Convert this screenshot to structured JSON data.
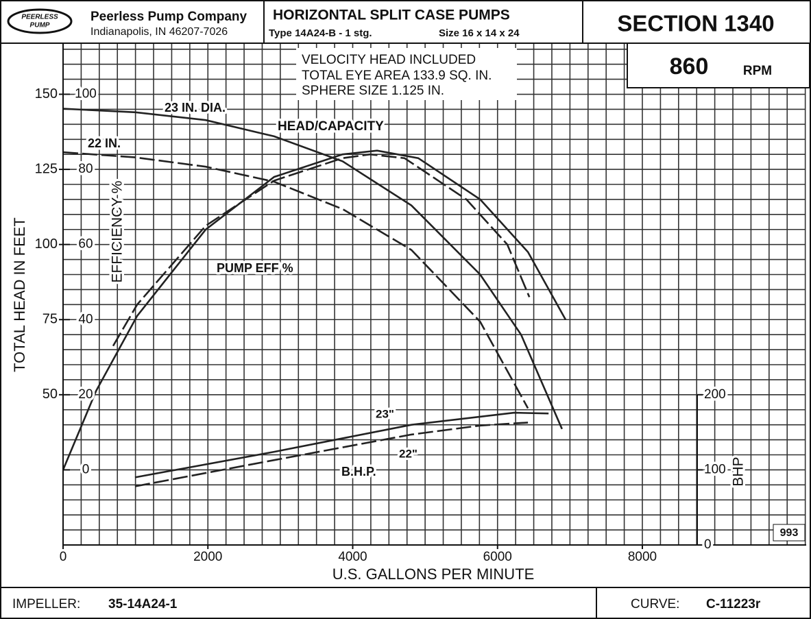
{
  "header": {
    "logo": [
      "PEERLESS",
      "PUMP"
    ],
    "company": "Peerless Pump Company",
    "address": "Indianapolis, IN 46207-7026",
    "title": "HORIZONTAL SPLIT CASE PUMPS",
    "type": "Type  14A24-B - 1 stg.",
    "size": "Size  16 x 14 x 24",
    "section": "SECTION 1340",
    "speed": 860,
    "speed_unit": "RPM"
  },
  "footer": {
    "impeller_label": "IMPELLER:",
    "impeller": "35-14A24-1",
    "curve_label": "CURVE:",
    "curve": "C-11223r"
  },
  "chart_data": {
    "type": "line",
    "notes": [
      "VELOCITY HEAD INCLUDED",
      "TOTAL EYE AREA 133.9 SQ. IN.",
      "SPHERE SIZE 1.125 IN."
    ],
    "annotations": [
      "23 IN. DIA.",
      "22 IN.",
      "HEAD/CAPACITY",
      "PUMP EFF %",
      "B.H.P.",
      "23\"",
      "22\"",
      "993"
    ],
    "xlabel": "U.S. GALLONS PER MINUTE",
    "ylabel": "TOTAL HEAD IN FEET",
    "y2label": "EFFICIENCY %",
    "y3label": "BHP",
    "xlim": [
      0,
      10250
    ],
    "xticks": [
      0,
      2000,
      4000,
      6000,
      8000
    ],
    "ylim": [
      0,
      167
    ],
    "yticks": [
      50,
      75,
      100,
      125,
      150
    ],
    "y2lim": [
      -20,
      113.6
    ],
    "y2ticks": [
      0,
      20,
      40,
      60,
      80,
      100
    ],
    "y3lim": [
      0,
      668
    ],
    "y3ticks": [
      0,
      100,
      200
    ],
    "grid": true,
    "minor_grid": {
      "x": 250,
      "y": 5
    },
    "series": [
      {
        "name": "23 IN. DIA. head",
        "axis": "y",
        "dash": false,
        "color": "#222",
        "x": [
          0,
          1000,
          1970,
          2915,
          3860,
          4810,
          5760,
          6325,
          6890
        ],
        "values": [
          145.2,
          144,
          141.4,
          136,
          127.7,
          113,
          90,
          70,
          38.6
        ]
      },
      {
        "name": "22 IN. head",
        "axis": "y",
        "dash": true,
        "color": "#222",
        "x": [
          0,
          1000,
          1970,
          2915,
          3860,
          4810,
          5760,
          6420
        ],
        "values": [
          130.7,
          129,
          125.9,
          120.9,
          111.8,
          98.2,
          74.3,
          45.5
        ]
      },
      {
        "name": "23 IN. efficiency",
        "axis": "y2",
        "dash": false,
        "color": "#222",
        "x": [
          0,
          455,
          1023,
          1970,
          2915,
          3860,
          4337,
          4905,
          5760,
          6420,
          6940
        ],
        "values": [
          0,
          21,
          41,
          64,
          78,
          84,
          85,
          83,
          72,
          58,
          40
        ]
      },
      {
        "name": "22 IN. efficiency",
        "axis": "y2",
        "dash": true,
        "color": "#222",
        "x": [
          691,
          1023,
          1970,
          2915,
          3860,
          4240,
          4715,
          5570,
          6135,
          6440
        ],
        "values": [
          33,
          44,
          65,
          77,
          83,
          84,
          83,
          72,
          60,
          46
        ]
      },
      {
        "name": "23 IN. BHP",
        "axis": "y3",
        "dash": false,
        "color": "#222",
        "x": [
          994,
          2915,
          4810,
          6230,
          6705
        ],
        "values": [
          90,
          124,
          160,
          176,
          175
        ]
      },
      {
        "name": "22 IN. BHP",
        "axis": "y3",
        "dash": true,
        "color": "#222",
        "x": [
          994,
          2915,
          4810,
          5760,
          6420
        ],
        "values": [
          78,
          113,
          147,
          159,
          163
        ]
      }
    ]
  }
}
